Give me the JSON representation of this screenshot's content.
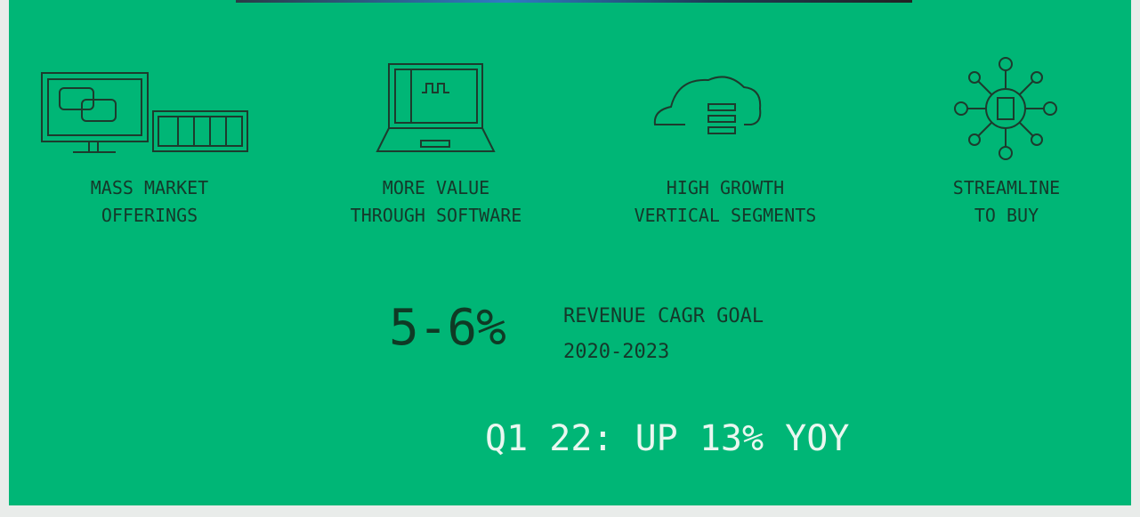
{
  "items": [
    {
      "lines": [
        "MASS MARKET",
        "OFFERINGS"
      ]
    },
    {
      "lines": [
        "MORE VALUE",
        "THROUGH SOFTWARE"
      ]
    },
    {
      "lines": [
        "HIGH GROWTH",
        "VERTICAL SEGMENTS"
      ]
    },
    {
      "lines": [
        "STREAMLINE",
        "TO BUY"
      ]
    }
  ],
  "goal": {
    "value": "5-6%",
    "label": "REVENUE CAGR GOAL",
    "period": "2020-2023"
  },
  "highlight": "Q1 22: UP 13% YOY"
}
